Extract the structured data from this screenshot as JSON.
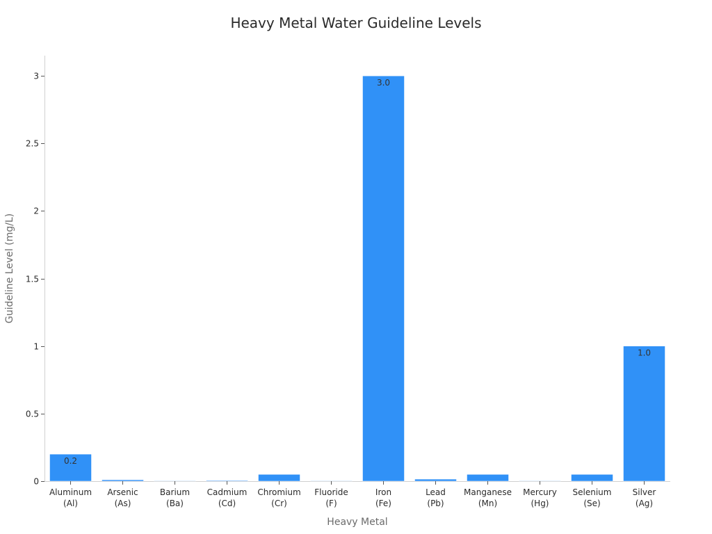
{
  "chart_data": {
    "type": "bar",
    "title": "Heavy Metal Water Guideline Levels",
    "xlabel": "Heavy Metal",
    "ylabel": "Guideline Level (mg/L)",
    "categories": [
      [
        "Aluminum",
        "(Al)"
      ],
      [
        "Arsenic",
        "(As)"
      ],
      [
        "Barium",
        "(Ba)"
      ],
      [
        "Cadmium",
        "(Cd)"
      ],
      [
        "Chromium",
        "(Cr)"
      ],
      [
        "Fluoride",
        "(F)"
      ],
      [
        "Iron",
        "(Fe)"
      ],
      [
        "Lead",
        "(Pb)"
      ],
      [
        "Manganese",
        "(Mn)"
      ],
      [
        "Mercury",
        "(Hg)"
      ],
      [
        "Selenium",
        "(Se)"
      ],
      [
        "Silver",
        "(Ag)"
      ]
    ],
    "values": [
      0.2,
      0.01,
      0.001,
      0.005,
      0.05,
      0.001,
      3.0,
      0.015,
      0.05,
      0.002,
      0.05,
      1.0
    ],
    "data_labels": [
      "0.2",
      "",
      "",
      "",
      "",
      "",
      "3.0",
      "",
      "",
      "",
      "",
      "1.0"
    ],
    "ylim": [
      0,
      3.15
    ],
    "yticks": [
      0,
      0.5,
      1,
      1.5,
      2,
      2.5,
      3
    ],
    "ytick_labels": [
      "0",
      "0.5",
      "1",
      "1.5",
      "2",
      "2.5",
      "3"
    ],
    "grid": false,
    "legend": "none",
    "bar_color": "#3091f7"
  }
}
